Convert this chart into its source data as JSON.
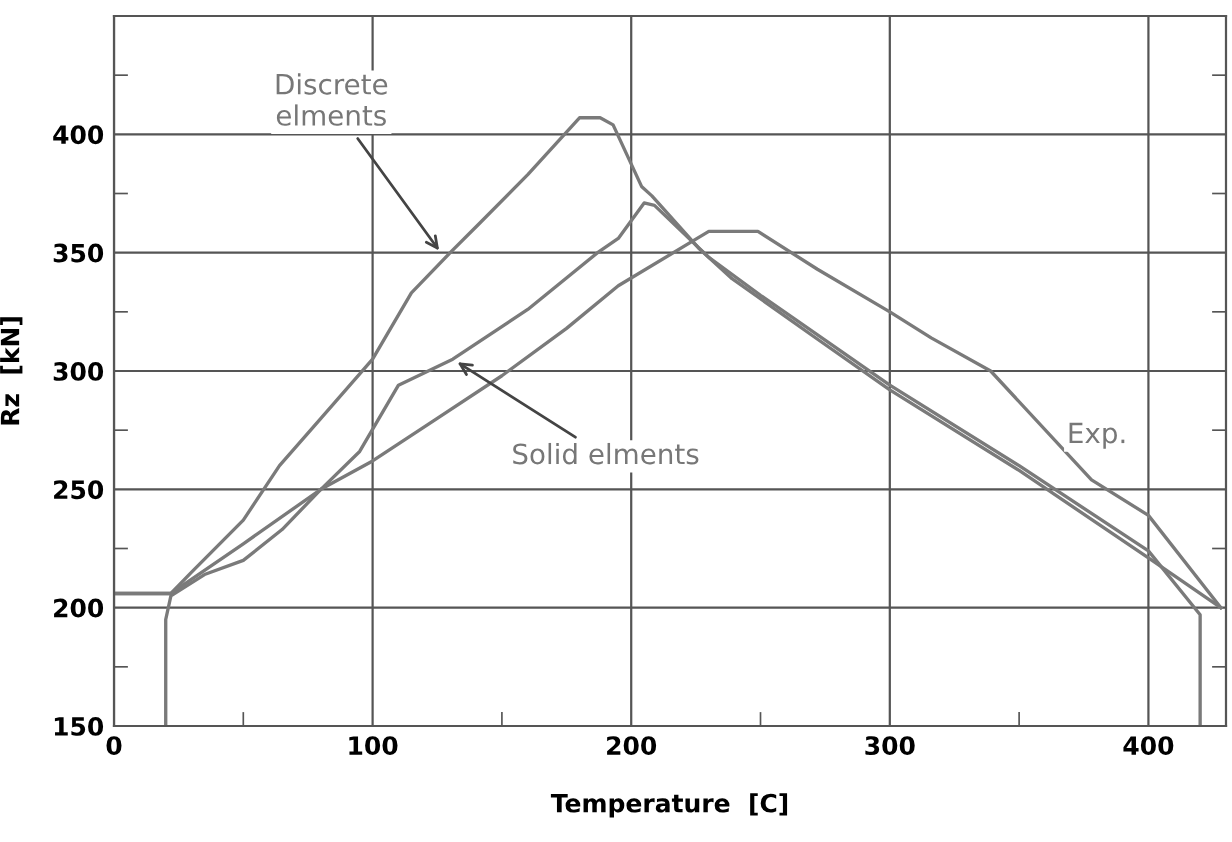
{
  "chart_data": {
    "type": "line",
    "xlabel": "Temperature  [C]",
    "ylabel": "Rz  [kN]",
    "xlim": [
      0,
      430
    ],
    "ylim": [
      150,
      450
    ],
    "xticks": [
      0,
      100,
      200,
      300,
      400
    ],
    "yticks": [
      150,
      200,
      250,
      300,
      350,
      400
    ],
    "grid": true,
    "line_style": "solid",
    "marker": "none",
    "series": [
      {
        "color": "#7a7a7a",
        "x": [
          0,
          22,
          30,
          50,
          64,
          80,
          100,
          115,
          130,
          141,
          160,
          180,
          188,
          193,
          204,
          208,
          226,
          239,
          270,
          300,
          350,
          400,
          428
        ],
        "values": [
          206,
          206,
          215,
          237,
          260,
          280,
          305,
          333,
          350,
          362,
          383,
          407,
          407,
          404,
          378,
          374,
          352,
          339,
          315,
          292,
          258,
          221,
          200
        ]
      },
      {
        "color": "#7a7a7a",
        "x": [
          20,
          20,
          22,
          35,
          50,
          65,
          80,
          95,
          110,
          131,
          160,
          187,
          195,
          205,
          209,
          230,
          250,
          300,
          350,
          400,
          420,
          420
        ],
        "values": [
          150,
          195,
          205,
          214,
          220,
          233,
          250,
          266,
          294,
          305,
          326,
          350,
          356,
          371,
          370,
          348,
          332,
          294,
          260,
          224,
          197,
          150
        ]
      },
      {
        "color": "#7a7a7a",
        "x": [
          0,
          22,
          50,
          80,
          100,
          125,
          150,
          175,
          195,
          230,
          249,
          272,
          300,
          316,
          339,
          378,
          400,
          428
        ],
        "values": [
          206,
          206,
          227,
          250,
          262,
          280,
          298,
          318,
          336,
          359,
          359,
          343,
          325,
          314,
          300,
          254,
          239,
          200
        ]
      }
    ],
    "annotations": [
      {
        "text": "Discrete\nelments",
        "x": 127,
        "y": 349
      },
      {
        "text": "Solid elments",
        "x": 131,
        "y": 305
      },
      {
        "text": "Exp.",
        "x": 378,
        "y": 254
      }
    ]
  }
}
